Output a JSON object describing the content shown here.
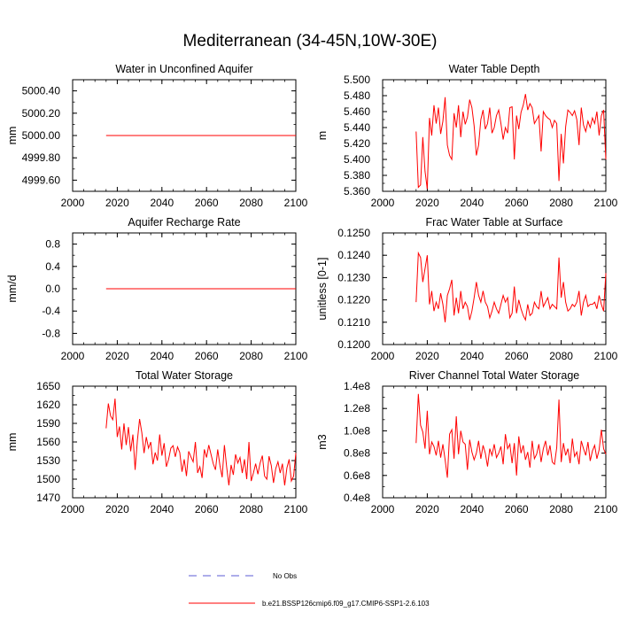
{
  "page_title": "Mediterranean (34-45N,10W-30E)",
  "legend": {
    "items": [
      {
        "label": "No Obs",
        "style": "dashed",
        "color": "#5b5bd6"
      },
      {
        "label": "b.e21.BSSP126cmip6.f09_g17.CMIP6-SSP1-2.6.103",
        "style": "solid",
        "color": "#ff0000"
      }
    ]
  },
  "chart_data": [
    {
      "type": "line",
      "title": "Water in Unconfined Aquifer",
      "ylabel": "mm",
      "xlim": [
        2000,
        2100
      ],
      "ylim": [
        4999.5,
        5000.5
      ],
      "xticks": [
        2000,
        2020,
        2040,
        2060,
        2080,
        2100
      ],
      "xtick_labels": [
        "2000",
        "2020",
        "2040",
        "2060",
        "2080",
        "2100"
      ],
      "yticks": [
        4999.6,
        4999.8,
        5000.0,
        5000.2,
        5000.4
      ],
      "ytick_labels": [
        "4999.60",
        "4999.80",
        "5000.00",
        "5000.20",
        "5000.40"
      ],
      "x_start": 2015,
      "series": [
        {
          "name": "b.e21.BSSP126cmip6.f09_g17.CMIP6-SSP1-2.6.103",
          "color": "#ff0000",
          "values": [
            5000.0,
            5000.0,
            5000.0,
            5000.0,
            5000.0,
            5000.0,
            5000.0,
            5000.0,
            5000.0,
            5000.0,
            5000.0,
            5000.0,
            5000.0,
            5000.0,
            5000.0,
            5000.0,
            5000.0,
            5000.0,
            5000.0,
            5000.0,
            5000.0,
            5000.0,
            5000.0,
            5000.0,
            5000.0,
            5000.0,
            5000.0,
            5000.0,
            5000.0,
            5000.0,
            5000.0,
            5000.0,
            5000.0,
            5000.0,
            5000.0,
            5000.0,
            5000.0,
            5000.0,
            5000.0,
            5000.0,
            5000.0,
            5000.0,
            5000.0,
            5000.0,
            5000.0,
            5000.0,
            5000.0,
            5000.0,
            5000.0,
            5000.0,
            5000.0,
            5000.0,
            5000.0,
            5000.0,
            5000.0,
            5000.0,
            5000.0,
            5000.0,
            5000.0,
            5000.0,
            5000.0,
            5000.0,
            5000.0,
            5000.0,
            5000.0,
            5000.0,
            5000.0,
            5000.0,
            5000.0,
            5000.0,
            5000.0,
            5000.0,
            5000.0,
            5000.0,
            5000.0,
            5000.0,
            5000.0,
            5000.0,
            5000.0,
            5000.0,
            5000.0,
            5000.0,
            5000.0,
            5000.0,
            5000.0,
            5000.0
          ]
        }
      ]
    },
    {
      "type": "line",
      "title": "Water Table Depth",
      "ylabel": "m",
      "xlim": [
        2000,
        2100
      ],
      "ylim": [
        5.36,
        5.5
      ],
      "xticks": [
        2000,
        2020,
        2040,
        2060,
        2080,
        2100
      ],
      "xtick_labels": [
        "2000",
        "2020",
        "2040",
        "2060",
        "2080",
        "2100"
      ],
      "yticks": [
        5.36,
        5.38,
        5.4,
        5.42,
        5.44,
        5.46,
        5.48,
        5.5
      ],
      "ytick_labels": [
        "5.360",
        "5.380",
        "5.400",
        "5.420",
        "5.440",
        "5.460",
        "5.480",
        "5.500"
      ],
      "x_start": 2015,
      "series": [
        {
          "name": "b.e21.BSSP126cmip6.f09_g17.CMIP6-SSP1-2.6.103",
          "color": "#ff0000",
          "values": [
            5.435,
            5.365,
            5.368,
            5.428,
            5.385,
            5.363,
            5.452,
            5.43,
            5.468,
            5.445,
            5.465,
            5.432,
            5.448,
            5.478,
            5.418,
            5.405,
            5.4,
            5.458,
            5.44,
            5.468,
            5.428,
            5.46,
            5.444,
            5.453,
            5.475,
            5.465,
            5.442,
            5.405,
            5.418,
            5.45,
            5.462,
            5.438,
            5.445,
            5.465,
            5.433,
            5.44,
            5.455,
            5.462,
            5.445,
            5.425,
            5.44,
            5.433,
            5.465,
            5.466,
            5.4,
            5.455,
            5.438,
            5.459,
            5.468,
            5.482,
            5.462,
            5.47,
            5.465,
            5.445,
            5.45,
            5.455,
            5.41,
            5.46,
            5.455,
            5.452,
            5.45,
            5.44,
            5.449,
            5.445,
            5.373,
            5.432,
            5.395,
            5.441,
            5.462,
            5.459,
            5.455,
            5.461,
            5.45,
            5.418,
            5.465,
            5.443,
            5.435,
            5.448,
            5.44,
            5.452,
            5.445,
            5.46,
            5.43,
            5.455,
            5.462,
            5.4
          ]
        }
      ]
    },
    {
      "type": "line",
      "title": "Aquifer Recharge Rate",
      "ylabel": "mm/d",
      "xlim": [
        2000,
        2100
      ],
      "ylim": [
        -1.0,
        1.0
      ],
      "xticks": [
        2000,
        2020,
        2040,
        2060,
        2080,
        2100
      ],
      "xtick_labels": [
        "2000",
        "2020",
        "2040",
        "2060",
        "2080",
        "2100"
      ],
      "yticks": [
        -0.8,
        -0.4,
        0.0,
        0.4,
        0.8
      ],
      "ytick_labels": [
        "-0.8",
        "-0.4",
        "0.0",
        "0.4",
        "0.8"
      ],
      "x_start": 2015,
      "series": [
        {
          "name": "b.e21.BSSP126cmip6.f09_g17.CMIP6-SSP1-2.6.103",
          "color": "#ff0000",
          "values": [
            0,
            0,
            0,
            0,
            0,
            0,
            0,
            0,
            0,
            0,
            0,
            0,
            0,
            0,
            0,
            0,
            0,
            0,
            0,
            0,
            0,
            0,
            0,
            0,
            0,
            0,
            0,
            0,
            0,
            0,
            0,
            0,
            0,
            0,
            0,
            0,
            0,
            0,
            0,
            0,
            0,
            0,
            0,
            0,
            0,
            0,
            0,
            0,
            0,
            0,
            0,
            0,
            0,
            0,
            0,
            0,
            0,
            0,
            0,
            0,
            0,
            0,
            0,
            0,
            0,
            0,
            0,
            0,
            0,
            0,
            0,
            0,
            0,
            0,
            0,
            0,
            0,
            0,
            0,
            0,
            0,
            0,
            0,
            0,
            0,
            0
          ]
        }
      ]
    },
    {
      "type": "line",
      "title": "Frac Water Table at Surface",
      "ylabel": "unitless [0-1]",
      "xlim": [
        2000,
        2100
      ],
      "ylim": [
        0.12,
        0.125
      ],
      "xticks": [
        2000,
        2020,
        2040,
        2060,
        2080,
        2100
      ],
      "xtick_labels": [
        "2000",
        "2020",
        "2040",
        "2060",
        "2080",
        "2100"
      ],
      "yticks": [
        0.12,
        0.121,
        0.122,
        0.123,
        0.124,
        0.125
      ],
      "ytick_labels": [
        "0.1200",
        "0.1210",
        "0.1220",
        "0.1230",
        "0.1240",
        "0.1250"
      ],
      "x_start": 2015,
      "series": [
        {
          "name": "b.e21.BSSP126cmip6.f09_g17.CMIP6-SSP1-2.6.103",
          "color": "#ff0000",
          "values": [
            0.1219,
            0.1241,
            0.1239,
            0.1228,
            0.1234,
            0.124,
            0.1218,
            0.1224,
            0.1215,
            0.1219,
            0.1216,
            0.1223,
            0.1218,
            0.121,
            0.1222,
            0.1225,
            0.1229,
            0.1213,
            0.1221,
            0.1214,
            0.1224,
            0.1216,
            0.1219,
            0.1217,
            0.1211,
            0.1215,
            0.1221,
            0.1228,
            0.1222,
            0.1219,
            0.1224,
            0.1219,
            0.1217,
            0.1212,
            0.1215,
            0.1219,
            0.1216,
            0.1214,
            0.1218,
            0.1222,
            0.1219,
            0.1221,
            0.1212,
            0.1214,
            0.1226,
            0.1214,
            0.122,
            0.1216,
            0.1213,
            0.1211,
            0.1218,
            0.1213,
            0.1214,
            0.1219,
            0.1217,
            0.1216,
            0.1224,
            0.1217,
            0.1219,
            0.1221,
            0.1216,
            0.1218,
            0.1217,
            0.1216,
            0.1239,
            0.1221,
            0.1228,
            0.1219,
            0.1215,
            0.1216,
            0.1218,
            0.1217,
            0.1219,
            0.1224,
            0.1213,
            0.1219,
            0.1222,
            0.1217,
            0.1218,
            0.1218,
            0.1219,
            0.1216,
            0.1222,
            0.1218,
            0.1215,
            0.1232
          ]
        }
      ]
    },
    {
      "type": "line",
      "title": "Total Water Storage",
      "ylabel": "mm",
      "xlim": [
        2000,
        2100
      ],
      "ylim": [
        1470,
        1650
      ],
      "xticks": [
        2000,
        2020,
        2040,
        2060,
        2080,
        2100
      ],
      "xtick_labels": [
        "2000",
        "2020",
        "2040",
        "2060",
        "2080",
        "2100"
      ],
      "yticks": [
        1470,
        1500,
        1530,
        1560,
        1590,
        1620,
        1650
      ],
      "ytick_labels": [
        "1470",
        "1500",
        "1530",
        "1560",
        "1590",
        "1620",
        "1650"
      ],
      "x_start": 2015,
      "series": [
        {
          "name": "b.e21.BSSP126cmip6.f09_g17.CMIP6-SSP1-2.6.103",
          "color": "#ff0000",
          "values": [
            1582,
            1622,
            1602,
            1596,
            1630,
            1568,
            1585,
            1548,
            1590,
            1555,
            1584,
            1545,
            1572,
            1515,
            1562,
            1597,
            1575,
            1542,
            1568,
            1550,
            1560,
            1524,
            1543,
            1530,
            1572,
            1538,
            1558,
            1520,
            1532,
            1550,
            1554,
            1536,
            1552,
            1543,
            1512,
            1532,
            1505,
            1545,
            1536,
            1528,
            1560,
            1510,
            1520,
            1502,
            1548,
            1535,
            1555,
            1540,
            1525,
            1515,
            1548,
            1522,
            1503,
            1555,
            1520,
            1490,
            1523,
            1507,
            1540,
            1526,
            1535,
            1510,
            1532,
            1500,
            1560,
            1497,
            1510,
            1525,
            1508,
            1526,
            1538,
            1505,
            1500,
            1537,
            1522,
            1494,
            1517,
            1528,
            1510,
            1525,
            1490,
            1518,
            1532,
            1497,
            1505,
            1542
          ]
        }
      ]
    },
    {
      "type": "line",
      "title": "River Channel Total Water Storage",
      "ylabel": "m3",
      "xlim": [
        2000,
        2100
      ],
      "ylim": [
        40000000,
        140000000
      ],
      "xticks": [
        2000,
        2020,
        2040,
        2060,
        2080,
        2100
      ],
      "xtick_labels": [
        "2000",
        "2020",
        "2040",
        "2060",
        "2080",
        "2100"
      ],
      "yticks": [
        40000000,
        60000000,
        80000000,
        100000000,
        120000000,
        140000000
      ],
      "ytick_labels": [
        "0.4e8",
        "0.6e8",
        "0.8e8",
        "1.0e8",
        "1.2e8",
        "1.4e8"
      ],
      "x_start": 2015,
      "series": [
        {
          "name": "b.e21.BSSP126cmip6.f09_g17.CMIP6-SSP1-2.6.103",
          "color": "#ff0000",
          "values": [
            89000000,
            133000000,
            105000000,
            99000000,
            84000000,
            118000000,
            79000000,
            90000000,
            86000000,
            78000000,
            91000000,
            76000000,
            88000000,
            74000000,
            58000000,
            97000000,
            101000000,
            75000000,
            113000000,
            79000000,
            100000000,
            90000000,
            88000000,
            65000000,
            92000000,
            81000000,
            74000000,
            80000000,
            91000000,
            75000000,
            87000000,
            80000000,
            68000000,
            84000000,
            78000000,
            88000000,
            76000000,
            80000000,
            86000000,
            70000000,
            97000000,
            84000000,
            88000000,
            71000000,
            89000000,
            60000000,
            95000000,
            80000000,
            87000000,
            74000000,
            81000000,
            67000000,
            91000000,
            75000000,
            79000000,
            88000000,
            72000000,
            84000000,
            91000000,
            78000000,
            87000000,
            72000000,
            70000000,
            85000000,
            128000000,
            72000000,
            89000000,
            78000000,
            84000000,
            71000000,
            93000000,
            77000000,
            81000000,
            70000000,
            91000000,
            84000000,
            78000000,
            90000000,
            73000000,
            82000000,
            87000000,
            75000000,
            83000000,
            101000000,
            84000000,
            79000000
          ]
        }
      ]
    }
  ]
}
